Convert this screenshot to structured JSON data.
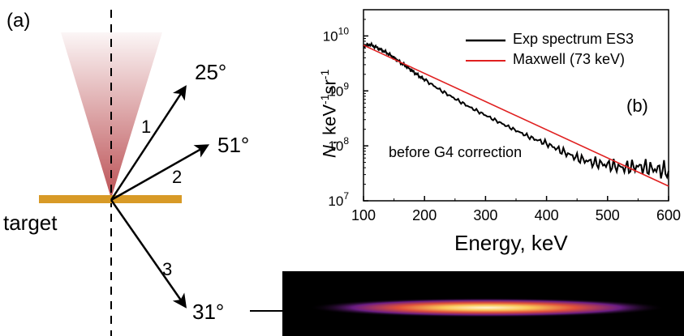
{
  "panel_a": {
    "label": "(a)",
    "target_label": "target",
    "arrows": [
      {
        "number": "1",
        "angle_label": "25°"
      },
      {
        "number": "2",
        "angle_label": "51°"
      },
      {
        "number": "3",
        "angle_label": "31°"
      }
    ],
    "colors": {
      "target_bar": "#d89a26",
      "cone": "#b8484c",
      "arrow": "#000000"
    }
  },
  "panel_b": {
    "label": "(b)",
    "annotation": "before G4 correction",
    "legend": [
      {
        "label": "Exp spectrum ES3",
        "color": "#000000"
      },
      {
        "label": "Maxwell (73 keV)",
        "color": "#e02020"
      }
    ]
  },
  "chart_data": {
    "type": "line",
    "x_axis": {
      "label": "Energy, keV",
      "range": [
        100,
        600
      ],
      "ticks": [
        "100",
        "200",
        "300",
        "400",
        "500",
        "600"
      ]
    },
    "y_axis": {
      "label_parts": [
        "N",
        ", keV",
        "-1",
        "sr",
        "-1"
      ],
      "scale": "log",
      "range": [
        10000000.0,
        30000000000.0
      ],
      "ticks": [
        {
          "base": "10",
          "exp": "7"
        },
        {
          "base": "10",
          "exp": "8"
        },
        {
          "base": "10",
          "exp": "9"
        },
        {
          "base": "10",
          "exp": "10"
        }
      ]
    },
    "legend_position": "top-right",
    "grid": false,
    "series": [
      {
        "name": "Exp spectrum ES3",
        "color": "#000000",
        "style": "noisy",
        "x": [
          100,
          110,
          120,
          130,
          140,
          150,
          160,
          170,
          180,
          190,
          200,
          225,
          250,
          275,
          300,
          325,
          350,
          375,
          400,
          425,
          450,
          475,
          500,
          525,
          550,
          575,
          600
        ],
        "y": [
          6500000000.0,
          7000000000.0,
          6300000000.0,
          5500000000.0,
          4800000000.0,
          4000000000.0,
          3300000000.0,
          2800000000.0,
          2300000000.0,
          1900000000.0,
          1600000000.0,
          1050000000.0,
          720000000.0,
          500000000.0,
          360000000.0,
          260000000.0,
          190000000.0,
          140000000.0,
          110000000.0,
          80000000.0,
          60000000.0,
          50000000.0,
          45000000.0,
          40000000.0,
          42000000.0,
          38000000.0,
          35000000.0
        ]
      },
      {
        "name": "Maxwell (73 keV)",
        "color": "#e02020",
        "style": "smooth",
        "x": [
          100,
          600
        ],
        "y": [
          6800000000.0,
          18500000.0
        ]
      }
    ]
  }
}
